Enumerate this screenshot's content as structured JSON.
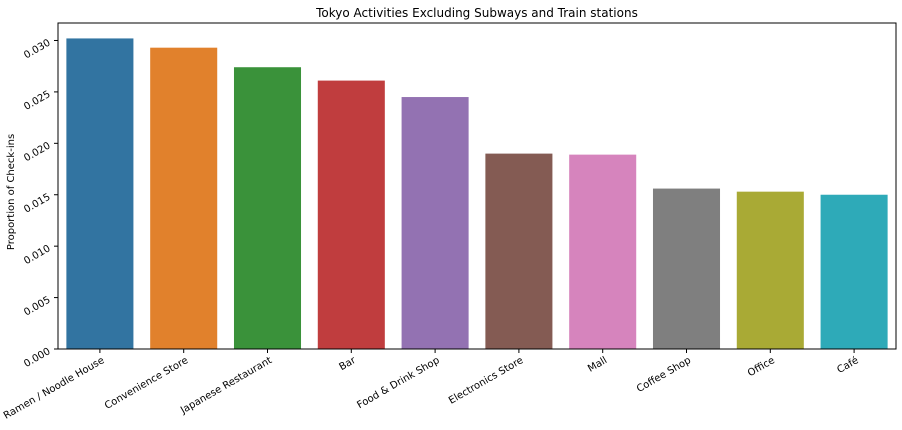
{
  "chart_data": {
    "type": "bar",
    "title": "Tokyo Activities Excluding Subways and Train stations",
    "xlabel": "",
    "ylabel": "Proportion of Check-ins",
    "categories": [
      "Ramen /  Noodle House",
      "Convenience Store",
      "Japanese Restaurant",
      "Bar",
      "Food & Drink Shop",
      "Electronics Store",
      "Mall",
      "Coffee Shop",
      "Office",
      "Café"
    ],
    "values": [
      0.0302,
      0.0293,
      0.0274,
      0.0261,
      0.0245,
      0.019,
      0.0189,
      0.0156,
      0.0153,
      0.015
    ],
    "colors": [
      "#3274a1",
      "#e1812c",
      "#3a923a",
      "#c03d3e",
      "#9372b2",
      "#845b53",
      "#d684bd",
      "#7f7f7f",
      "#a9aa35",
      "#2eaab8"
    ],
    "ylim": [
      0,
      0.0317
    ],
    "yticks": [
      "0.000",
      "0.005",
      "0.010",
      "0.015",
      "0.020",
      "0.025",
      "0.030"
    ],
    "ytick_values": [
      0,
      0.005,
      0.01,
      0.015,
      0.02,
      0.025,
      0.03
    ],
    "grid": false,
    "legend": "none"
  }
}
